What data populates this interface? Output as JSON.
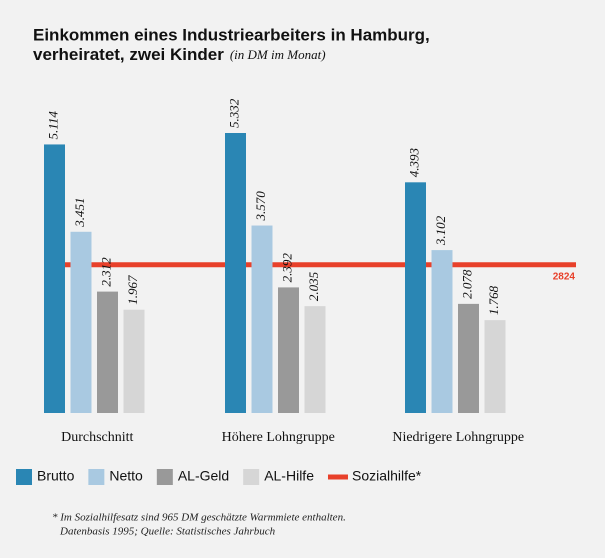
{
  "chart_data": {
    "type": "bar",
    "title": [
      "Einkommen eines Industriearbeiters in Hamburg,",
      "verheiratet, zwei Kinder"
    ],
    "subtitle": "(in DM im Monat)",
    "categories": [
      "Durchschnitt",
      "Höhere Lohngruppe",
      "Niedrigere Lohngruppe"
    ],
    "series": [
      {
        "name": "Brutto",
        "color": "#2a86b4",
        "values": [
          5114,
          5332,
          4393
        ],
        "value_labels": [
          "5.114",
          "5.332",
          "4.393"
        ]
      },
      {
        "name": "Netto",
        "color": "#a9c9e1",
        "values": [
          3451,
          3570,
          3102
        ],
        "value_labels": [
          "3.451",
          "3.570",
          "3.102"
        ]
      },
      {
        "name": "AL-Geld",
        "color": "#999999",
        "values": [
          2312,
          2392,
          2078
        ],
        "value_labels": [
          "2.312",
          "2.392",
          "2.078"
        ]
      },
      {
        "name": "AL-Hilfe",
        "color": "#d6d6d6",
        "values": [
          1967,
          2035,
          1768
        ],
        "value_labels": [
          "1.967",
          "2.035",
          "1.768"
        ]
      }
    ],
    "reference": {
      "name": "Sozialhilfe*",
      "value": 2824,
      "color": "#e8402a"
    },
    "footnote": [
      "* Im Sozialhilfesatz sind 965 DM geschätzte Warmmiete enthalten.",
      "Datenbasis 1995; Quelle: Statistisches Jahrbuch"
    ]
  }
}
